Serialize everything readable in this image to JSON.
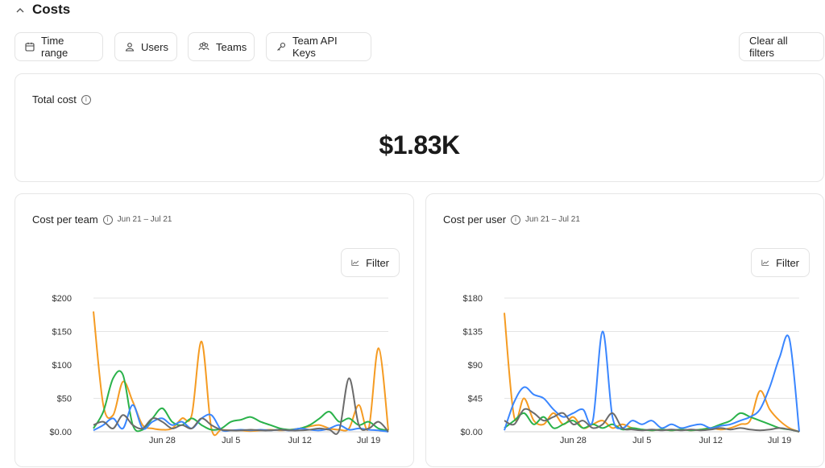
{
  "section": {
    "title": "Costs",
    "chevron": "^"
  },
  "filters": [
    {
      "label": "Time range",
      "icon": "calendar-icon"
    },
    {
      "label": "Users",
      "icon": "user-icon"
    },
    {
      "label": "Teams",
      "icon": "teams-icon"
    },
    {
      "label": "Team API Keys",
      "icon": "key-icon"
    }
  ],
  "clear_filters_label": "Clear all filters",
  "total_cost": {
    "title": "Total cost",
    "value": "$1.83K"
  },
  "charts": [
    {
      "title": "Cost per team",
      "date_range": "Jun 21 – Jul 21",
      "filter_label": "Filter"
    },
    {
      "title": "Cost per user",
      "date_range": "Jun 21 – Jul 21",
      "filter_label": "Filter"
    }
  ],
  "chart_data": [
    {
      "type": "line",
      "title": "Cost per team",
      "x_ticks": [
        "Jun 28",
        "Jul 5",
        "Jul 12",
        "Jul 19"
      ],
      "y_ticks": [
        "$0.00",
        "$50",
        "$100",
        "$150",
        "$200"
      ],
      "ylim": [
        0,
        200
      ],
      "x": [
        "Jun 21",
        "Jun 22",
        "Jun 23",
        "Jun 24",
        "Jun 25",
        "Jun 26",
        "Jun 27",
        "Jun 28",
        "Jun 29",
        "Jun 30",
        "Jul 1",
        "Jul 2",
        "Jul 3",
        "Jul 4",
        "Jul 5",
        "Jul 6",
        "Jul 7",
        "Jul 8",
        "Jul 9",
        "Jul 10",
        "Jul 11",
        "Jul 12",
        "Jul 13",
        "Jul 14",
        "Jul 15",
        "Jul 16",
        "Jul 17",
        "Jul 18",
        "Jul 19",
        "Jul 20",
        "Jul 21"
      ],
      "series": [
        {
          "color": "#f59b22",
          "values": [
            180,
            40,
            25,
            75,
            45,
            10,
            5,
            3,
            5,
            20,
            25,
            135,
            5,
            3,
            2,
            2,
            1,
            2,
            3,
            2,
            3,
            5,
            8,
            10,
            5,
            3,
            5,
            40,
            5,
            125,
            2
          ]
        },
        {
          "color": "#2ab24a",
          "values": [
            5,
            30,
            80,
            85,
            10,
            3,
            20,
            35,
            15,
            10,
            20,
            10,
            3,
            5,
            15,
            18,
            22,
            15,
            10,
            5,
            3,
            5,
            10,
            20,
            30,
            15,
            20,
            10,
            15,
            5,
            2
          ]
        },
        {
          "color": "#3a86ff",
          "values": [
            2,
            10,
            20,
            5,
            40,
            5,
            15,
            20,
            10,
            15,
            5,
            20,
            25,
            3,
            2,
            3,
            2,
            3,
            2,
            3,
            2,
            5,
            3,
            2,
            5,
            10,
            3,
            5,
            3,
            2,
            0
          ]
        },
        {
          "color": "#6b6b6b",
          "values": [
            10,
            15,
            5,
            25,
            10,
            5,
            20,
            15,
            5,
            10,
            5,
            20,
            10,
            3,
            2,
            2,
            3,
            2,
            2,
            3,
            2,
            2,
            3,
            5,
            3,
            2,
            80,
            10,
            5,
            15,
            0
          ]
        }
      ]
    },
    {
      "type": "line",
      "title": "Cost per user",
      "x_ticks": [
        "Jun 28",
        "Jul 5",
        "Jul 12",
        "Jul 19"
      ],
      "y_ticks": [
        "$0.00",
        "$45",
        "$90",
        "$135",
        "$180"
      ],
      "ylim": [
        0,
        180
      ],
      "x": [
        "Jun 21",
        "Jun 22",
        "Jun 23",
        "Jun 24",
        "Jun 25",
        "Jun 26",
        "Jun 27",
        "Jun 28",
        "Jun 29",
        "Jun 30",
        "Jul 1",
        "Jul 2",
        "Jul 3",
        "Jul 4",
        "Jul 5",
        "Jul 6",
        "Jul 7",
        "Jul 8",
        "Jul 9",
        "Jul 10",
        "Jul 11",
        "Jul 12",
        "Jul 13",
        "Jul 14",
        "Jul 15",
        "Jul 16",
        "Jul 17",
        "Jul 18",
        "Jul 19",
        "Jul 20",
        "Jul 21"
      ],
      "series": [
        {
          "color": "#f59b22",
          "values": [
            160,
            20,
            45,
            15,
            10,
            25,
            10,
            20,
            5,
            10,
            15,
            5,
            10,
            5,
            3,
            2,
            3,
            2,
            3,
            2,
            3,
            5,
            3,
            5,
            10,
            15,
            55,
            30,
            15,
            5,
            0
          ]
        },
        {
          "color": "#2ab24a",
          "values": [
            5,
            15,
            25,
            10,
            20,
            5,
            10,
            15,
            5,
            10,
            5,
            10,
            3,
            5,
            3,
            2,
            3,
            2,
            3,
            2,
            3,
            5,
            10,
            15,
            25,
            20,
            15,
            10,
            5,
            3,
            0
          ]
        },
        {
          "color": "#3a86ff",
          "values": [
            2,
            40,
            60,
            50,
            45,
            30,
            20,
            25,
            30,
            15,
            135,
            20,
            5,
            15,
            10,
            15,
            5,
            10,
            5,
            8,
            10,
            5,
            8,
            10,
            15,
            20,
            30,
            60,
            100,
            125,
            0
          ]
        },
        {
          "color": "#6b6b6b",
          "values": [
            15,
            10,
            30,
            25,
            15,
            20,
            25,
            10,
            15,
            5,
            10,
            25,
            5,
            3,
            2,
            3,
            2,
            3,
            2,
            3,
            2,
            3,
            5,
            3,
            5,
            3,
            2,
            3,
            5,
            3,
            0
          ]
        }
      ]
    }
  ]
}
